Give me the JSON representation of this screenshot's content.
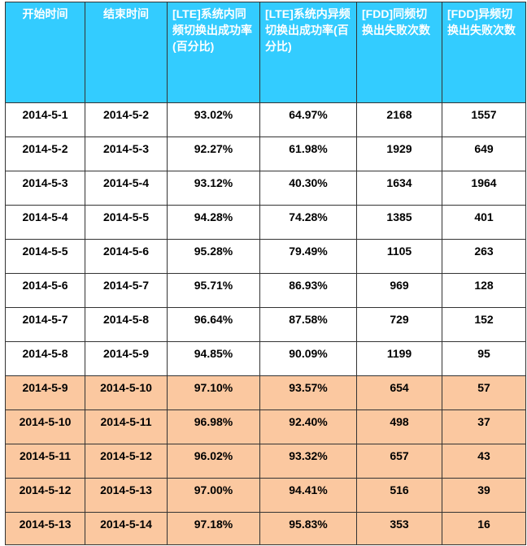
{
  "table": {
    "headers": [
      "开始时间",
      "结束时间",
      "[LTE]系统内同频切换出成功率(百分比)",
      "[LTE]系统内异频切换出成功率(百分比)",
      "[FDD]同频切换出失败次数",
      "[FDD]异频切换出失败次数"
    ],
    "rows": [
      [
        "2014-5-1",
        "2014-5-2",
        "93.02%",
        "64.97%",
        "2168",
        "1557"
      ],
      [
        "2014-5-2",
        "2014-5-3",
        "92.27%",
        "61.98%",
        "1929",
        "649"
      ],
      [
        "2014-5-3",
        "2014-5-4",
        "93.12%",
        "40.30%",
        "1634",
        "1964"
      ],
      [
        "2014-5-4",
        "2014-5-5",
        "94.28%",
        "74.28%",
        "1385",
        "401"
      ],
      [
        "2014-5-5",
        "2014-5-6",
        "95.28%",
        "79.49%",
        "1105",
        "263"
      ],
      [
        "2014-5-6",
        "2014-5-7",
        "95.71%",
        "86.93%",
        "969",
        "128"
      ],
      [
        "2014-5-7",
        "2014-5-8",
        "96.64%",
        "87.58%",
        "729",
        "152"
      ],
      [
        "2014-5-8",
        "2014-5-9",
        "94.85%",
        "90.09%",
        "1199",
        "95"
      ],
      [
        "2014-5-9",
        "2014-5-10",
        "97.10%",
        "93.57%",
        "654",
        "57"
      ],
      [
        "2014-5-10",
        "2014-5-11",
        "96.98%",
        "92.40%",
        "498",
        "37"
      ],
      [
        "2014-5-11",
        "2014-5-12",
        "96.02%",
        "93.32%",
        "657",
        "43"
      ],
      [
        "2014-5-12",
        "2014-5-13",
        "97.00%",
        "94.41%",
        "516",
        "39"
      ],
      [
        "2014-5-13",
        "2014-5-14",
        "97.18%",
        "95.83%",
        "353",
        "16"
      ]
    ],
    "highlight_color": "#fbc8a0",
    "header_color": "#33ccff"
  }
}
